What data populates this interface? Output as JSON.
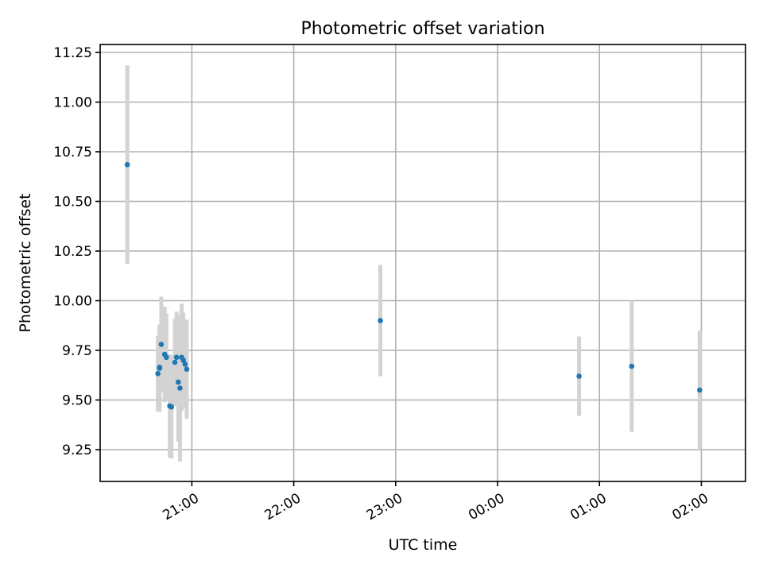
{
  "chart_data": {
    "type": "scatter",
    "title": "Photometric offset variation",
    "xlabel": "UTC time",
    "ylabel": "Photometric offset",
    "x_is_time": true,
    "ylim": [
      9.09,
      11.29
    ],
    "xlim": [
      "20:06",
      "02:26"
    ],
    "yticks": [
      9.25,
      9.5,
      9.75,
      10.0,
      10.25,
      10.5,
      10.75,
      11.0,
      11.25
    ],
    "ytick_labels": [
      "9.25",
      "9.50",
      "9.75",
      "10.00",
      "10.25",
      "10.50",
      "10.75",
      "11.00",
      "11.25"
    ],
    "xticks": [
      "21:00",
      "22:00",
      "23:00",
      "00:00",
      "01:00",
      "02:00"
    ],
    "grid": true,
    "colors": {
      "points": "#1f77b4",
      "errorbars": "#d3d3d3",
      "grid": "#b0b0b0"
    },
    "points": [
      {
        "x": "20:22",
        "y": 10.685,
        "err": 0.5
      },
      {
        "x": "20:40",
        "y": 9.633,
        "err": 0.19
      },
      {
        "x": "20:41",
        "y": 9.66,
        "err": 0.22
      },
      {
        "x": "20:41",
        "y": 9.665,
        "err": 0.2
      },
      {
        "x": "20:42",
        "y": 9.78,
        "err": 0.24
      },
      {
        "x": "20:44",
        "y": 9.73,
        "err": 0.24
      },
      {
        "x": "20:45",
        "y": 9.715,
        "err": 0.22
      },
      {
        "x": "20:47",
        "y": 9.47,
        "err": 0.26
      },
      {
        "x": "20:48",
        "y": 9.465,
        "err": 0.26
      },
      {
        "x": "20:50",
        "y": 9.69,
        "err": 0.22
      },
      {
        "x": "20:51",
        "y": 9.715,
        "err": 0.23
      },
      {
        "x": "20:52",
        "y": 9.59,
        "err": 0.3
      },
      {
        "x": "20:53",
        "y": 9.56,
        "err": 0.37
      },
      {
        "x": "20:54",
        "y": 9.715,
        "err": 0.27
      },
      {
        "x": "20:55",
        "y": 9.7,
        "err": 0.24
      },
      {
        "x": "20:56",
        "y": 9.68,
        "err": 0.22
      },
      {
        "x": "20:57",
        "y": 9.655,
        "err": 0.25
      },
      {
        "x": "22:51",
        "y": 9.9,
        "err": 0.28
      },
      {
        "x": "00:48",
        "y": 9.62,
        "err": 0.2
      },
      {
        "x": "01:19",
        "y": 9.67,
        "err": 0.33
      },
      {
        "x": "01:59",
        "y": 9.55,
        "err": 0.3
      }
    ]
  }
}
